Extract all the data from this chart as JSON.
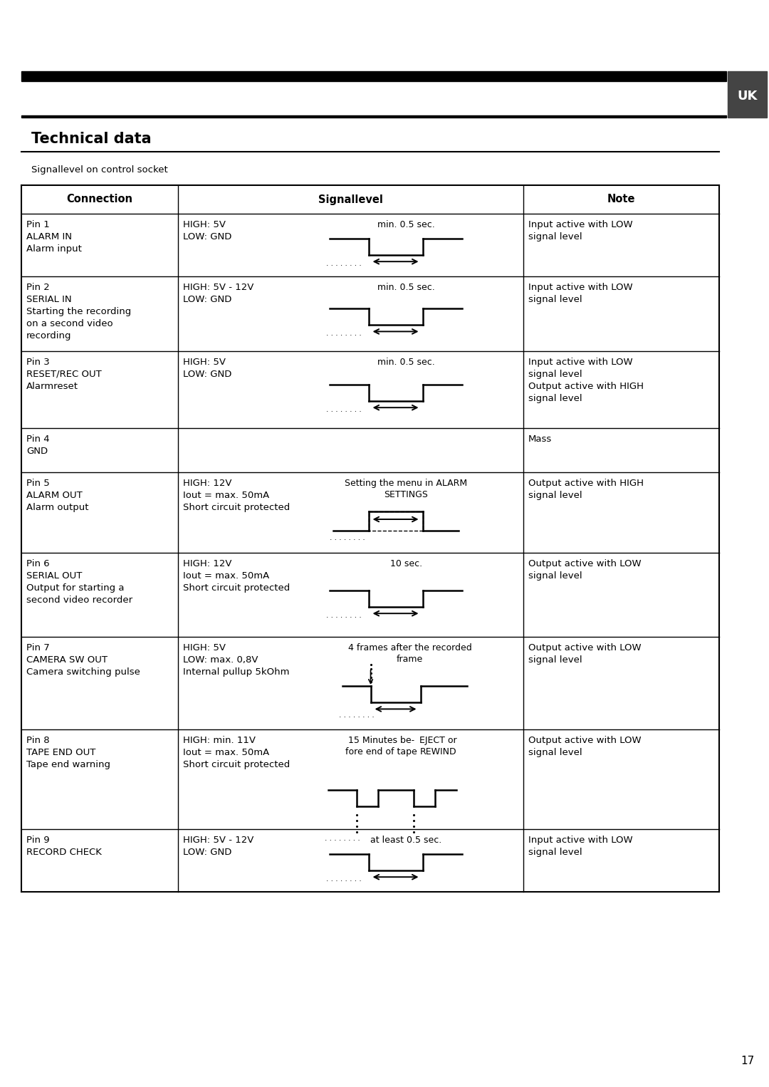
{
  "bg_color": "#ffffff",
  "title": "Technical data",
  "subtitle": "Signallevel on control socket",
  "page_number": "17",
  "uk_label": "UK",
  "col_headers": [
    "Connection",
    "Signallevel",
    "Note"
  ],
  "rows": [
    {
      "pin": "Pin 1",
      "name": "ALARM IN",
      "desc": "Alarm input",
      "signal_text1": "HIGH: 5V",
      "signal_text2": "LOW: GND",
      "signal_text3": "",
      "diagram": "low_pulse",
      "timing_label": "min. 0.5 sec.",
      "timing_label2": "",
      "note": "Input active with LOW\nsignal level"
    },
    {
      "pin": "Pin 2",
      "name": "SERIAL IN",
      "desc": "Starting the recording\non a second video\nrecording",
      "signal_text1": "HIGH: 5V - 12V",
      "signal_text2": "LOW: GND",
      "signal_text3": "",
      "diagram": "low_pulse",
      "timing_label": "min. 0.5 sec.",
      "timing_label2": "",
      "note": "Input active with LOW\nsignal level"
    },
    {
      "pin": "Pin 3",
      "name": "RESET/REC OUT",
      "desc": "Alarmreset",
      "signal_text1": "HIGH: 5V",
      "signal_text2": "LOW: GND",
      "signal_text3": "",
      "diagram": "low_pulse",
      "timing_label": "min. 0.5 sec.",
      "timing_label2": "",
      "note": "Input active with LOW\nsignal level\nOutput active with HIGH\nsignal level"
    },
    {
      "pin": "Pin 4",
      "name": "GND",
      "desc": "",
      "signal_text1": "",
      "signal_text2": "",
      "signal_text3": "",
      "diagram": "none",
      "timing_label": "",
      "timing_label2": "",
      "note": "Mass"
    },
    {
      "pin": "Pin 5",
      "name": "ALARM OUT",
      "desc": "Alarm output",
      "signal_text1": "HIGH: 12V",
      "signal_text2": "Iout = max. 50mA",
      "signal_text3": "Short circuit protected",
      "diagram": "high_pulse",
      "timing_label": "Setting the menu in ALARM\nSETTINGS",
      "timing_label2": "",
      "note": "Output active with HIGH\nsignal level"
    },
    {
      "pin": "Pin 6",
      "name": "SERIAL OUT",
      "desc": "Output for starting a\nsecond video recorder",
      "signal_text1": "HIGH: 12V",
      "signal_text2": "Iout = max. 50mA",
      "signal_text3": "Short circuit protected",
      "diagram": "low_pulse",
      "timing_label": "10 sec.",
      "timing_label2": "",
      "note": "Output active with LOW\nsignal level"
    },
    {
      "pin": "Pin 7",
      "name": "CAMERA SW OUT",
      "desc": "Camera switching pulse",
      "signal_text1": "HIGH: 5V",
      "signal_text2": "LOW: max. 0,8V",
      "signal_text3": "Internal pullup 5kOhm",
      "diagram": "camera_pulse",
      "timing_label": "4 frames after the recorded\nframe",
      "timing_label2": "",
      "note": "Output active with LOW\nsignal level"
    },
    {
      "pin": "Pin 8",
      "name": "TAPE END OUT",
      "desc": "Tape end warning",
      "signal_text1": "HIGH: min. 11V",
      "signal_text2": "Iout = max. 50mA",
      "signal_text3": "Short circuit protected",
      "diagram": "tape_end",
      "timing_label": "15 Minutes be-\nfore end of tape",
      "timing_label2": "EJECT or\nREWIND",
      "note": "Output active with LOW\nsignal level"
    },
    {
      "pin": "Pin 9",
      "name": "RECORD CHECK",
      "desc": "",
      "signal_text1": "HIGH: 5V - 12V",
      "signal_text2": "LOW: GND",
      "signal_text3": "",
      "diagram": "low_pulse",
      "timing_label": "at least 0.5 sec.",
      "timing_label2": "",
      "note": "Input active with LOW\nsignal level"
    }
  ]
}
